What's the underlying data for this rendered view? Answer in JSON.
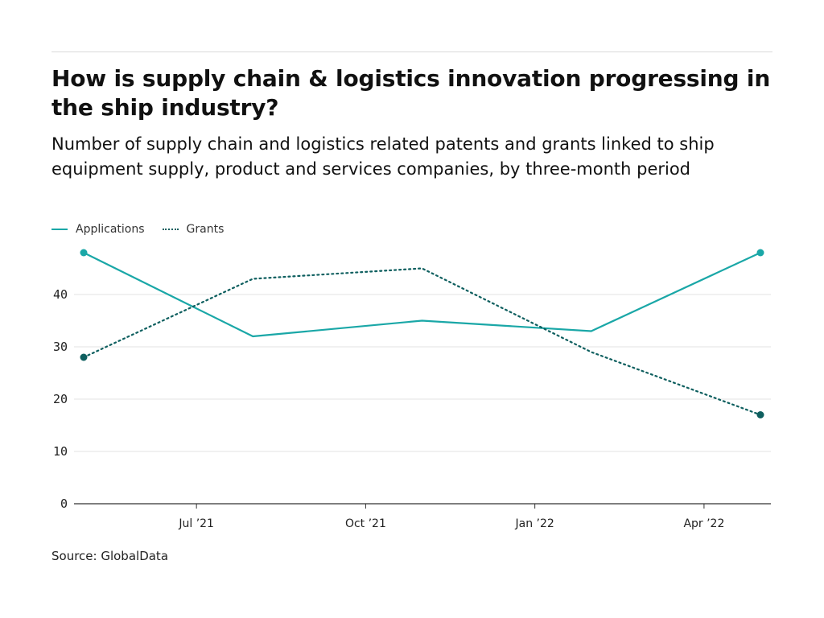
{
  "title": "How is supply chain & logistics innovation progressing in the ship industry?",
  "subtitle": "Number of supply chain and logistics related patents and grants linked to ship equipment supply, product and services companies, by three-month period",
  "source": "Source: GlobalData",
  "colors": {
    "applications": "#1aa7a7",
    "grants": "#0e5f5f",
    "grid": "#e3e3e3",
    "axis": "#333333"
  },
  "legend": [
    {
      "label": "Applications",
      "style": "solid"
    },
    {
      "label": "Grants",
      "style": "dotted"
    }
  ],
  "chart_data": {
    "type": "line",
    "title": "How is supply chain & logistics innovation progressing in the ship industry?",
    "subtitle": "Number of supply chain and logistics related patents and grants linked to ship equipment supply, product and services companies, by three-month period",
    "x": [
      "2021-05",
      "2021-08",
      "2021-11",
      "2022-02",
      "2022-05"
    ],
    "x_tick_labels": [
      "Jul ’21",
      "Oct ’21",
      "Jan ’22",
      "Apr ’22"
    ],
    "x_tick_dates": [
      "2021-07",
      "2021-10",
      "2022-01",
      "2022-04"
    ],
    "series": [
      {
        "name": "Applications",
        "values": [
          48,
          32,
          35,
          33,
          48
        ],
        "line_style": "solid"
      },
      {
        "name": "Grants",
        "values": [
          28,
          43,
          45,
          29,
          17
        ],
        "line_style": "dotted"
      }
    ],
    "y_ticks": [
      0,
      10,
      20,
      30,
      40
    ],
    "ylim": [
      0,
      48
    ],
    "grid": true,
    "legend_position": "top-left",
    "xlabel": "",
    "ylabel": ""
  }
}
